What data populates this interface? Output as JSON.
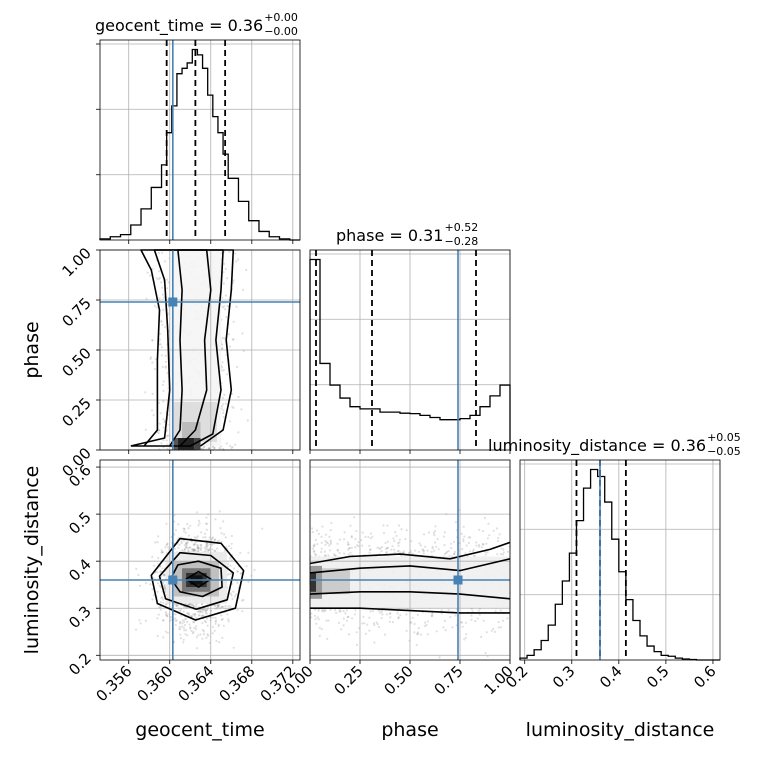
{
  "chart_data": {
    "type": "corner",
    "truth_color": "#4682b4",
    "params": [
      {
        "name": "geocent_time",
        "title_prefix": "geocent_time = 0.36",
        "title_plus": "+0.00",
        "title_minus": "−0.00",
        "range": [
          0.3532,
          0.3727
        ],
        "ticks": [
          0.356,
          0.36,
          0.364,
          0.368,
          0.372
        ],
        "tick_labels": [
          "0.356",
          "0.360",
          "0.364",
          "0.368",
          "0.372"
        ],
        "truth": 0.3603,
        "quantiles": [
          0.3597,
          0.3625,
          0.3654
        ],
        "hist_edges": [
          0.3532,
          0.3542,
          0.3552,
          0.3562,
          0.3572,
          0.3582,
          0.3592,
          0.3597,
          0.3602,
          0.3607,
          0.3612,
          0.3617,
          0.3622,
          0.3627,
          0.3632,
          0.3637,
          0.3642,
          0.3647,
          0.3652,
          0.3657,
          0.3667,
          0.3677,
          0.3687,
          0.3697,
          0.3707,
          0.3717,
          0.3727
        ],
        "hist_counts": [
          2,
          6,
          10,
          28,
          58,
          98,
          140,
          200,
          250,
          310,
          320,
          330,
          355,
          345,
          320,
          270,
          230,
          200,
          160,
          115,
          72,
          36,
          16,
          6,
          2,
          0
        ]
      },
      {
        "name": "phase",
        "title_prefix": "phase = 0.31",
        "title_plus": "+0.52",
        "title_minus": "−0.28",
        "range": [
          0.0,
          1.0
        ],
        "ticks": [
          0.0,
          0.25,
          0.5,
          0.75,
          1.0
        ],
        "tick_labels": [
          "0.00",
          "0.25",
          "0.50",
          "0.75",
          "1.00"
        ],
        "truth": 0.74,
        "quantiles": [
          0.03,
          0.31,
          0.83
        ],
        "hist_edges": [
          0.0,
          0.05,
          0.1,
          0.15,
          0.2,
          0.25,
          0.3,
          0.35,
          0.4,
          0.45,
          0.5,
          0.55,
          0.6,
          0.65,
          0.7,
          0.75,
          0.8,
          0.85,
          0.9,
          0.95,
          1.0
        ],
        "hist_counts": [
          880,
          400,
          300,
          240,
          200,
          190,
          190,
          175,
          175,
          170,
          168,
          160,
          150,
          140,
          140,
          145,
          160,
          200,
          250,
          300
        ]
      },
      {
        "name": "luminosity_distance",
        "title_prefix": "luminosity_distance = 0.36",
        "title_plus": "+0.05",
        "title_minus": "−0.05",
        "range": [
          0.19,
          0.615
        ],
        "ticks": [
          0.2,
          0.3,
          0.4,
          0.5,
          0.6
        ],
        "tick_labels": [
          "0.2",
          "0.3",
          "0.4",
          "0.5",
          "0.6"
        ],
        "truth": 0.36,
        "quantiles": [
          0.31,
          0.36,
          0.415
        ],
        "hist_edges": [
          0.19,
          0.205,
          0.22,
          0.235,
          0.25,
          0.265,
          0.28,
          0.295,
          0.31,
          0.325,
          0.34,
          0.355,
          0.37,
          0.385,
          0.4,
          0.415,
          0.43,
          0.445,
          0.46,
          0.475,
          0.49,
          0.505,
          0.52,
          0.535,
          0.55,
          0.565,
          0.58,
          0.595,
          0.615
        ],
        "hist_counts": [
          4,
          10,
          22,
          42,
          75,
          120,
          170,
          230,
          300,
          370,
          410,
          395,
          340,
          260,
          190,
          130,
          85,
          52,
          30,
          18,
          10,
          8,
          4,
          2,
          1,
          0,
          0,
          0
        ]
      }
    ],
    "contours": {
      "phase_vs_geocent_time": [
        [
          [
            0.36,
            0.02
          ],
          [
            0.361,
            0.1
          ],
          [
            0.3612,
            0.3
          ],
          [
            0.361,
            0.55
          ],
          [
            0.3612,
            0.8
          ],
          [
            0.3608,
            1.0
          ],
          [
            0.3636,
            1.0
          ],
          [
            0.364,
            0.8
          ],
          [
            0.3634,
            0.55
          ],
          [
            0.3636,
            0.3
          ],
          [
            0.3625,
            0.1
          ],
          [
            0.361,
            0.02
          ]
        ],
        [
          [
            0.3562,
            0.02
          ],
          [
            0.3595,
            0.06
          ],
          [
            0.36,
            0.3
          ],
          [
            0.3598,
            0.6
          ],
          [
            0.3595,
            0.85
          ],
          [
            0.3585,
            1.0
          ],
          [
            0.3652,
            1.0
          ],
          [
            0.365,
            0.8
          ],
          [
            0.3645,
            0.55
          ],
          [
            0.365,
            0.3
          ],
          [
            0.3642,
            0.08
          ],
          [
            0.362,
            0.02
          ],
          [
            0.3562,
            0.02
          ]
        ],
        [
          [
            0.3575,
            0.02
          ],
          [
            0.3588,
            0.1
          ],
          [
            0.3588,
            0.45
          ],
          [
            0.359,
            0.7
          ],
          [
            0.3582,
            0.9
          ],
          [
            0.3572,
            1.0
          ],
          [
            0.3662,
            1.0
          ],
          [
            0.366,
            0.8
          ],
          [
            0.3655,
            0.55
          ],
          [
            0.366,
            0.3
          ],
          [
            0.3652,
            0.1
          ],
          [
            0.363,
            0.02
          ]
        ]
      ],
      "luminosity_distance_vs_geocent_time": [
        [
          [
            0.3616,
            0.362
          ],
          [
            0.3628,
            0.345
          ],
          [
            0.364,
            0.362
          ],
          [
            0.3628,
            0.378
          ],
          [
            0.3616,
            0.362
          ]
        ],
        [
          [
            0.3601,
            0.363
          ],
          [
            0.361,
            0.335
          ],
          [
            0.3632,
            0.325
          ],
          [
            0.3651,
            0.345
          ],
          [
            0.365,
            0.385
          ],
          [
            0.3628,
            0.4
          ],
          [
            0.3608,
            0.392
          ],
          [
            0.3601,
            0.363
          ]
        ],
        [
          [
            0.359,
            0.368
          ],
          [
            0.3596,
            0.32
          ],
          [
            0.3626,
            0.298
          ],
          [
            0.3656,
            0.318
          ],
          [
            0.3662,
            0.375
          ],
          [
            0.364,
            0.412
          ],
          [
            0.361,
            0.418
          ],
          [
            0.359,
            0.368
          ]
        ],
        [
          [
            0.3582,
            0.37
          ],
          [
            0.3588,
            0.31
          ],
          [
            0.3625,
            0.275
          ],
          [
            0.3664,
            0.3
          ],
          [
            0.3672,
            0.38
          ],
          [
            0.365,
            0.438
          ],
          [
            0.361,
            0.448
          ],
          [
            0.3582,
            0.37
          ]
        ]
      ],
      "luminosity_distance_vs_phase": [
        [
          [
            0.0,
            0.395
          ],
          [
            0.2,
            0.41
          ],
          [
            0.45,
            0.415
          ],
          [
            0.7,
            0.405
          ],
          [
            0.9,
            0.425
          ],
          [
            1.0,
            0.44
          ]
        ],
        [
          [
            0.0,
            0.375
          ],
          [
            0.25,
            0.385
          ],
          [
            0.5,
            0.39
          ],
          [
            0.75,
            0.38
          ],
          [
            1.0,
            0.405
          ]
        ],
        [
          [
            0.0,
            0.33
          ],
          [
            0.25,
            0.335
          ],
          [
            0.5,
            0.335
          ],
          [
            0.75,
            0.33
          ],
          [
            1.0,
            0.32
          ]
        ],
        [
          [
            0.0,
            0.3
          ],
          [
            0.25,
            0.3
          ],
          [
            0.5,
            0.295
          ],
          [
            0.75,
            0.29
          ],
          [
            1.0,
            0.29
          ]
        ]
      ]
    }
  }
}
